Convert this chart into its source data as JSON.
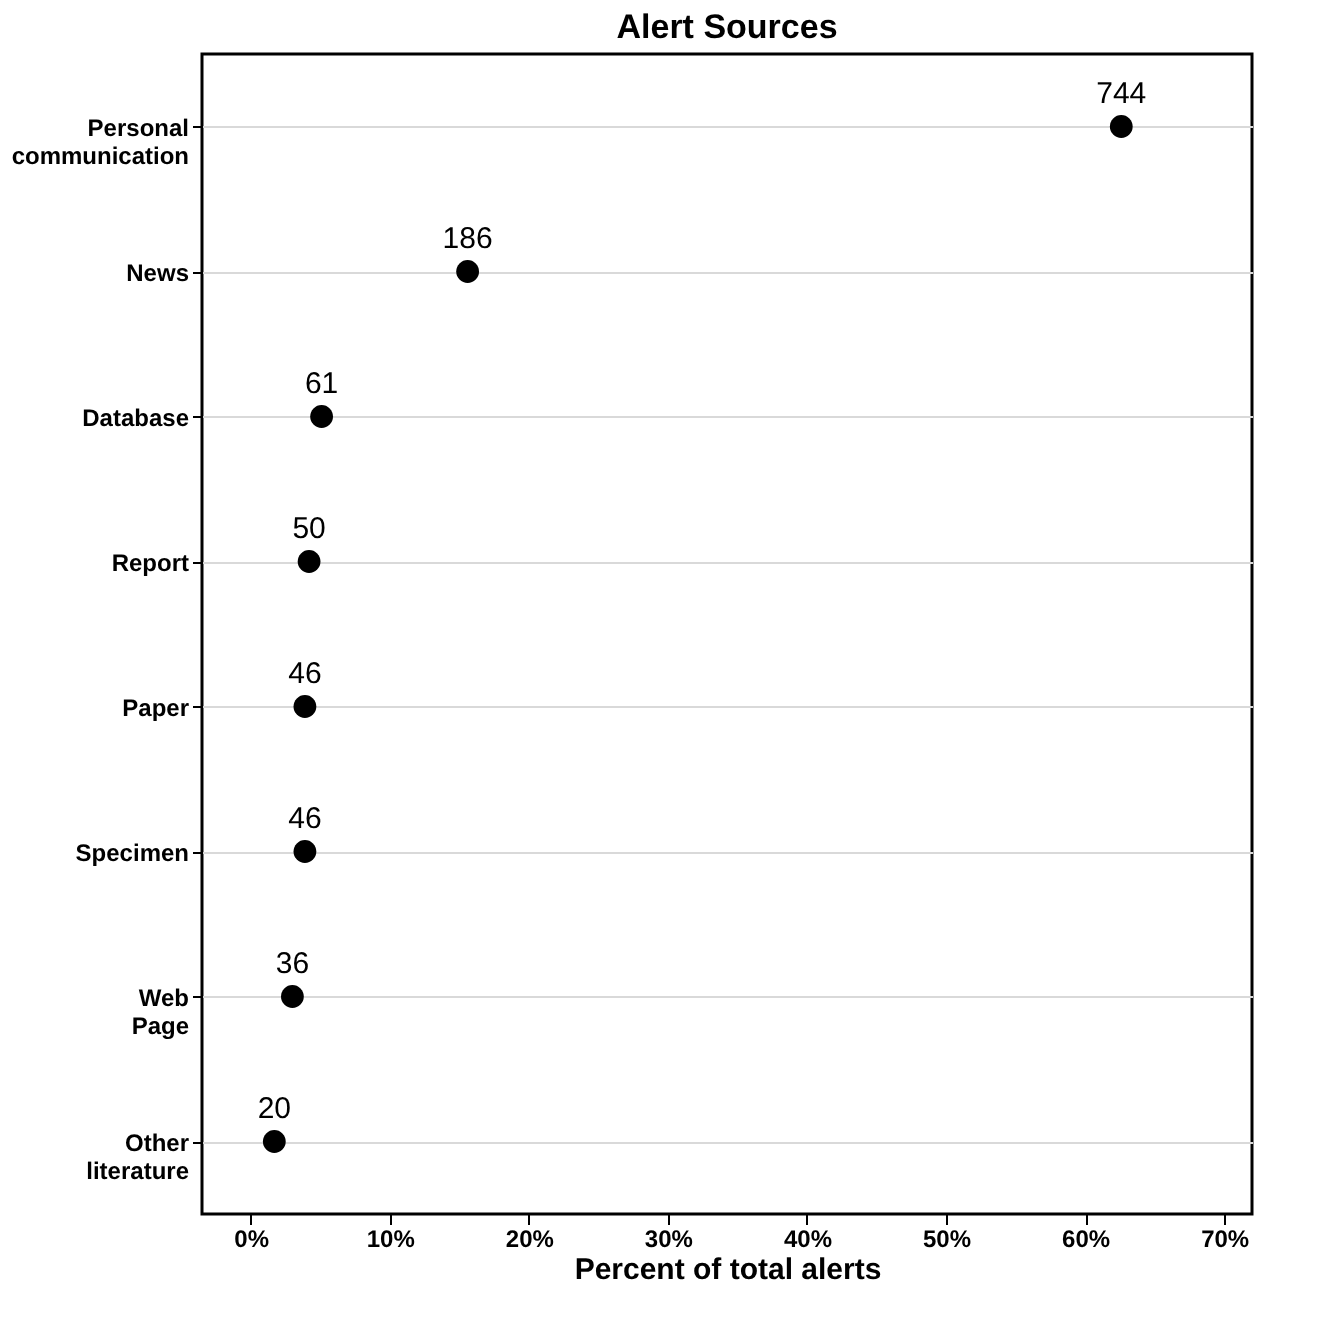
{
  "chart_data": {
    "type": "scatter",
    "orientation": "horizontal",
    "title": "Alert Sources",
    "xlabel": "Percent of total alerts",
    "categories": [
      "Personal communication",
      "News",
      "Database",
      "Report",
      "Paper",
      "Specimen",
      "Web Page",
      "Other literature"
    ],
    "values": [
      62.6,
      15.6,
      5.1,
      4.2,
      3.9,
      3.9,
      3.0,
      1.7
    ],
    "annotations": [
      {
        "text": "744",
        "x": 62.6,
        "y": "Personal communication"
      },
      {
        "text": "186",
        "x": 15.6,
        "y": "News"
      },
      {
        "text": "61",
        "x": 5.1,
        "y": "Database"
      },
      {
        "text": "50",
        "x": 4.2,
        "y": "Report"
      },
      {
        "text": "46",
        "x": 3.9,
        "y": "Paper"
      },
      {
        "text": "46",
        "x": 3.9,
        "y": "Specimen"
      },
      {
        "text": "36",
        "x": 3.0,
        "y": "Web Page"
      },
      {
        "text": "20",
        "x": 1.7,
        "y": "Other literature"
      }
    ],
    "color": "#000000",
    "marker": "circle",
    "grid": "y",
    "xlim": [
      -3.5,
      72
    ],
    "xticks": [
      {
        "value": 0,
        "label": "0%"
      },
      {
        "value": 10,
        "label": "10%"
      },
      {
        "value": 20,
        "label": "20%"
      },
      {
        "value": 30,
        "label": "30%"
      },
      {
        "value": 40,
        "label": "40%"
      },
      {
        "value": 50,
        "label": "50%"
      },
      {
        "value": 60,
        "label": "60%"
      },
      {
        "value": 70,
        "label": "70%"
      }
    ]
  }
}
